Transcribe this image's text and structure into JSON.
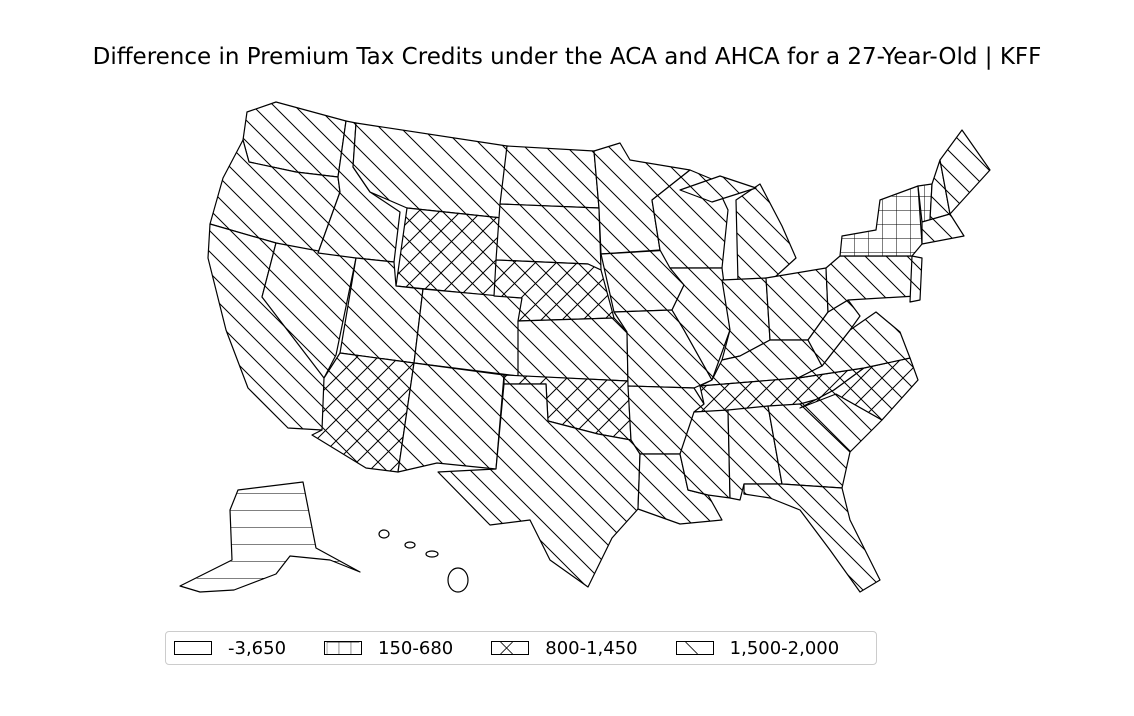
{
  "title": "Difference in Premium Tax Credits under the ACA and AHCA for a 27-Year-Old | KFF",
  "legend": [
    {
      "label": "-3,650",
      "pattern": "none"
    },
    {
      "label": "150-680",
      "pattern": "vertical"
    },
    {
      "label": "800-1,450",
      "pattern": "cross"
    },
    {
      "label": "1,500-2,000",
      "pattern": "diagonal"
    }
  ],
  "map_data": {
    "type": "choropleth",
    "regions": [
      {
        "name": "WA",
        "class": "1,500-2,000"
      },
      {
        "name": "OR",
        "class": "1,500-2,000"
      },
      {
        "name": "CA",
        "class": "1,500-2,000"
      },
      {
        "name": "NV",
        "class": "1,500-2,000"
      },
      {
        "name": "ID",
        "class": "1,500-2,000"
      },
      {
        "name": "MT",
        "class": "1,500-2,000"
      },
      {
        "name": "WY",
        "class": "800-1,450"
      },
      {
        "name": "UT",
        "class": "1,500-2,000"
      },
      {
        "name": "AZ",
        "class": "800-1,450"
      },
      {
        "name": "CO",
        "class": "1,500-2,000"
      },
      {
        "name": "NM",
        "class": "1,500-2,000"
      },
      {
        "name": "ND",
        "class": "1,500-2,000"
      },
      {
        "name": "SD",
        "class": "1,500-2,000"
      },
      {
        "name": "NE",
        "class": "800-1,450"
      },
      {
        "name": "KS",
        "class": "1,500-2,000"
      },
      {
        "name": "OK",
        "class": "800-1,450"
      },
      {
        "name": "TX",
        "class": "1,500-2,000"
      },
      {
        "name": "MN",
        "class": "1,500-2,000"
      },
      {
        "name": "IA",
        "class": "1,500-2,000"
      },
      {
        "name": "MO",
        "class": "1,500-2,000"
      },
      {
        "name": "AR",
        "class": "1,500-2,000"
      },
      {
        "name": "LA",
        "class": "1,500-2,000"
      },
      {
        "name": "WI",
        "class": "1,500-2,000"
      },
      {
        "name": "IL",
        "class": "1,500-2,000"
      },
      {
        "name": "MI",
        "class": "1,500-2,000"
      },
      {
        "name": "IN",
        "class": "1,500-2,000"
      },
      {
        "name": "OH",
        "class": "1,500-2,000"
      },
      {
        "name": "KY",
        "class": "1,500-2,000"
      },
      {
        "name": "TN",
        "class": "800-1,450"
      },
      {
        "name": "MS",
        "class": "1,500-2,000"
      },
      {
        "name": "AL",
        "class": "1,500-2,000"
      },
      {
        "name": "GA",
        "class": "1,500-2,000"
      },
      {
        "name": "FL",
        "class": "1,500-2,000"
      },
      {
        "name": "SC",
        "class": "1,500-2,000"
      },
      {
        "name": "NC",
        "class": "800-1,450"
      },
      {
        "name": "VA",
        "class": "1,500-2,000"
      },
      {
        "name": "WV",
        "class": "1,500-2,000"
      },
      {
        "name": "PA",
        "class": "1,500-2,000"
      },
      {
        "name": "NY",
        "class": "150-680"
      },
      {
        "name": "VT",
        "class": "150-680"
      },
      {
        "name": "NH",
        "class": "1,500-2,000"
      },
      {
        "name": "ME",
        "class": "1,500-2,000"
      },
      {
        "name": "MA",
        "class": "1,500-2,000"
      },
      {
        "name": "NJ",
        "class": "1,500-2,000"
      },
      {
        "name": "AK",
        "class": "-3,650"
      },
      {
        "name": "HI",
        "class": "-3,650"
      }
    ]
  }
}
